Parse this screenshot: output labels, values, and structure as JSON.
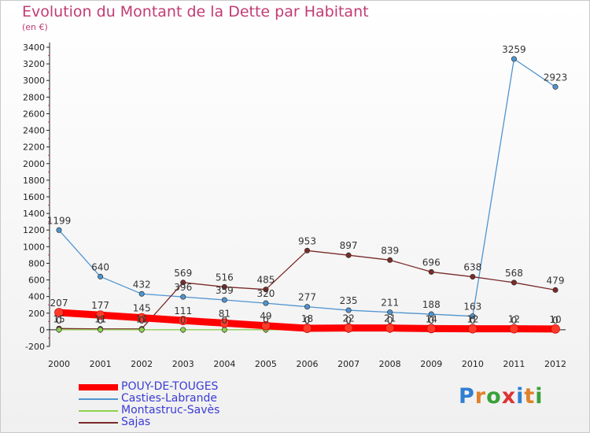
{
  "title": "Evolution du Montant de la Dette par Habitant",
  "unit": "(en €)",
  "logo": {
    "text": "Proxiti",
    "colors": [
      "#2f7fd1",
      "#e0812b",
      "#3aa03a",
      "#d33",
      "#2f7fd1",
      "#e0812b",
      "#3aa03a"
    ]
  },
  "chart_data": {
    "type": "line",
    "title": "Evolution du Montant de la Dette par Habitant",
    "ylabel": "(en €)",
    "xlabel": "",
    "ylim": [
      -200,
      3400
    ],
    "yticks": [
      -200,
      0,
      200,
      400,
      600,
      800,
      1000,
      1200,
      1400,
      1600,
      1800,
      2000,
      2200,
      2400,
      2600,
      2800,
      3000,
      3200,
      3400
    ],
    "x": [
      "2000",
      "2001",
      "2002",
      "2003",
      "2004",
      "2005",
      "2006",
      "2007",
      "2008",
      "2009",
      "2010",
      "2011",
      "2012"
    ],
    "grid": false,
    "legend_position": "bottom-left",
    "series": [
      {
        "name": "POUY-DE-TOUGES",
        "color": "#ff0000",
        "values": [
          207,
          177,
          145,
          111,
          81,
          49,
          18,
          22,
          21,
          14,
          12,
          12,
          10
        ],
        "labels": [
          "207",
          "177",
          "145",
          "111",
          "81",
          "49",
          "18",
          "22",
          "21",
          "14",
          "12",
          "12",
          "10"
        ]
      },
      {
        "name": "Casties-Labrande",
        "color": "#4f94cf",
        "values": [
          1199,
          640,
          432,
          396,
          359,
          320,
          277,
          235,
          211,
          188,
          163,
          3259,
          2923
        ],
        "labels": [
          "1199",
          "640",
          "432",
          "396",
          "359",
          "320",
          "277",
          "235",
          "211",
          "188",
          "163",
          "3259",
          "2923"
        ]
      },
      {
        "name": "Montastruc-Savès",
        "color": "#8fd14f",
        "values": [
          0,
          0,
          0,
          0,
          0,
          0,
          0,
          0,
          0,
          0,
          0,
          0,
          0
        ],
        "labels": [
          "0",
          "0",
          "0",
          "0",
          "0",
          "0",
          "0",
          "0",
          "0",
          "0",
          "0",
          "0",
          "0"
        ]
      },
      {
        "name": "Sajas",
        "color": "#7a2a2a",
        "values": [
          15,
          11,
          11,
          569,
          516,
          485,
          953,
          897,
          839,
          696,
          638,
          568,
          479
        ],
        "labels": [
          "15",
          "11",
          "11",
          "569",
          "516",
          "485",
          "953",
          "897",
          "839",
          "696",
          "638",
          "568",
          "479"
        ]
      }
    ]
  }
}
